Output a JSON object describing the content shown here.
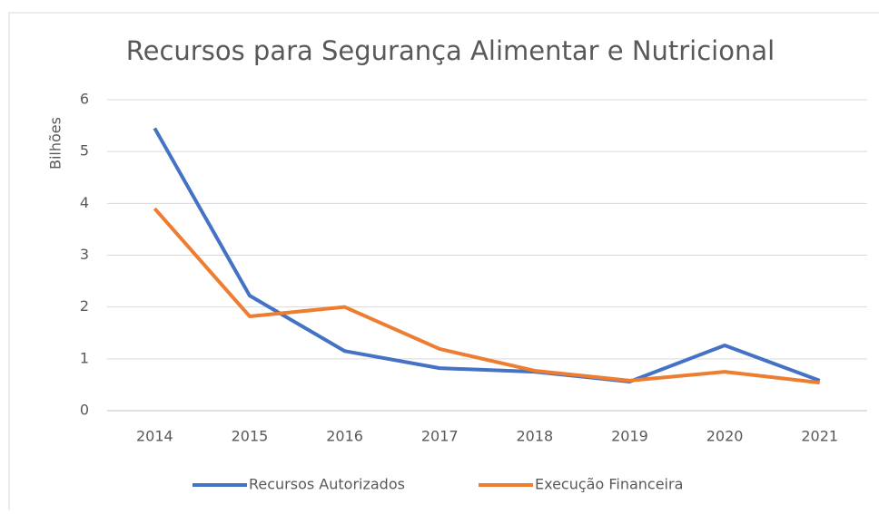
{
  "chart_data": {
    "type": "line",
    "title": "Recursos para Segurança Alimentar e Nutricional",
    "y_label": "Bilhões",
    "categories": [
      "2014",
      "2015",
      "2016",
      "2017",
      "2018",
      "2019",
      "2020",
      "2021"
    ],
    "series": [
      {
        "name": "Recursos Autorizados",
        "color": "#4472c4",
        "values": [
          5.45,
          2.22,
          1.15,
          0.82,
          0.75,
          0.56,
          1.26,
          0.58
        ]
      },
      {
        "name": "Execução Financeira",
        "color": "#ed7d31",
        "values": [
          3.9,
          1.82,
          2.0,
          1.19,
          0.77,
          0.58,
          0.75,
          0.54
        ]
      }
    ],
    "ylim": [
      0,
      6
    ],
    "yticks": [
      0,
      1,
      2,
      3,
      4,
      5,
      6
    ],
    "grid": true,
    "legend": "bottom"
  }
}
